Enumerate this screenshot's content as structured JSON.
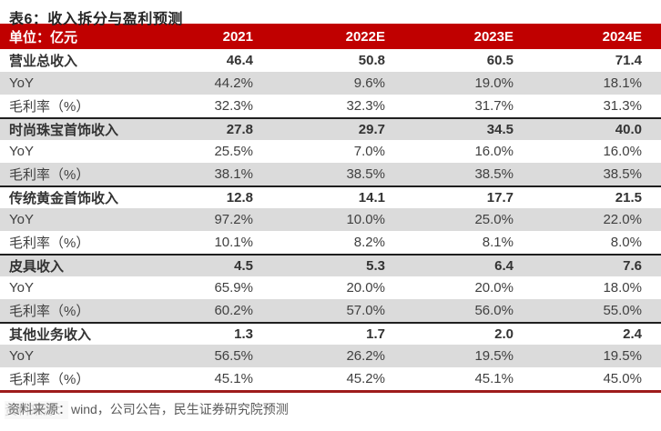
{
  "table": {
    "title": "表6：收入拆分与盈利预测",
    "header": {
      "unit_label": "单位：亿元",
      "columns": [
        "2021",
        "2022E",
        "2023E",
        "2024E"
      ]
    },
    "sections": [
      {
        "rows": [
          {
            "label": "营业总收入",
            "values": [
              "46.4",
              "50.8",
              "60.5",
              "71.4"
            ]
          },
          {
            "label": "YoY",
            "values": [
              "44.2%",
              "9.6%",
              "19.0%",
              "18.1%"
            ]
          },
          {
            "label": "毛利率（%）",
            "values": [
              "32.3%",
              "32.3%",
              "31.7%",
              "31.3%"
            ]
          }
        ]
      },
      {
        "rows": [
          {
            "label": "时尚珠宝首饰收入",
            "values": [
              "27.8",
              "29.7",
              "34.5",
              "40.0"
            ]
          },
          {
            "label": "YoY",
            "values": [
              "25.5%",
              "7.0%",
              "16.0%",
              "16.0%"
            ]
          },
          {
            "label": "毛利率（%）",
            "values": [
              "38.1%",
              "38.5%",
              "38.5%",
              "38.5%"
            ]
          }
        ]
      },
      {
        "rows": [
          {
            "label": "传统黄金首饰收入",
            "values": [
              "12.8",
              "14.1",
              "17.7",
              "21.5"
            ]
          },
          {
            "label": "YoY",
            "values": [
              "97.2%",
              "10.0%",
              "25.0%",
              "22.0%"
            ]
          },
          {
            "label": "毛利率（%）",
            "values": [
              "10.1%",
              "8.2%",
              "8.1%",
              "8.0%"
            ]
          }
        ]
      },
      {
        "rows": [
          {
            "label": "皮具收入",
            "values": [
              "4.5",
              "5.3",
              "6.4",
              "7.6"
            ]
          },
          {
            "label": "YoY",
            "values": [
              "65.9%",
              "20.0%",
              "20.0%",
              "18.0%"
            ]
          },
          {
            "label": "毛利率（%）",
            "values": [
              "60.2%",
              "57.0%",
              "56.0%",
              "55.0%"
            ]
          }
        ]
      },
      {
        "rows": [
          {
            "label": "其他业务收入",
            "values": [
              "1.3",
              "1.7",
              "2.0",
              "2.4"
            ]
          },
          {
            "label": "YoY",
            "values": [
              "56.5%",
              "26.2%",
              "19.5%",
              "19.5%"
            ]
          },
          {
            "label": "毛利率（%）",
            "values": [
              "45.1%",
              "45.2%",
              "45.1%",
              "45.0%"
            ]
          }
        ]
      }
    ],
    "footer": {
      "prefix": "资料来源：",
      "text": "wind，公司公告，民生证券研究院预测"
    },
    "colors": {
      "header_bg": "#C00000",
      "band_bg": "#DBDBDB",
      "section_divider": "#1F1F1F",
      "bottom_rule": "#9E1B1B"
    }
  }
}
